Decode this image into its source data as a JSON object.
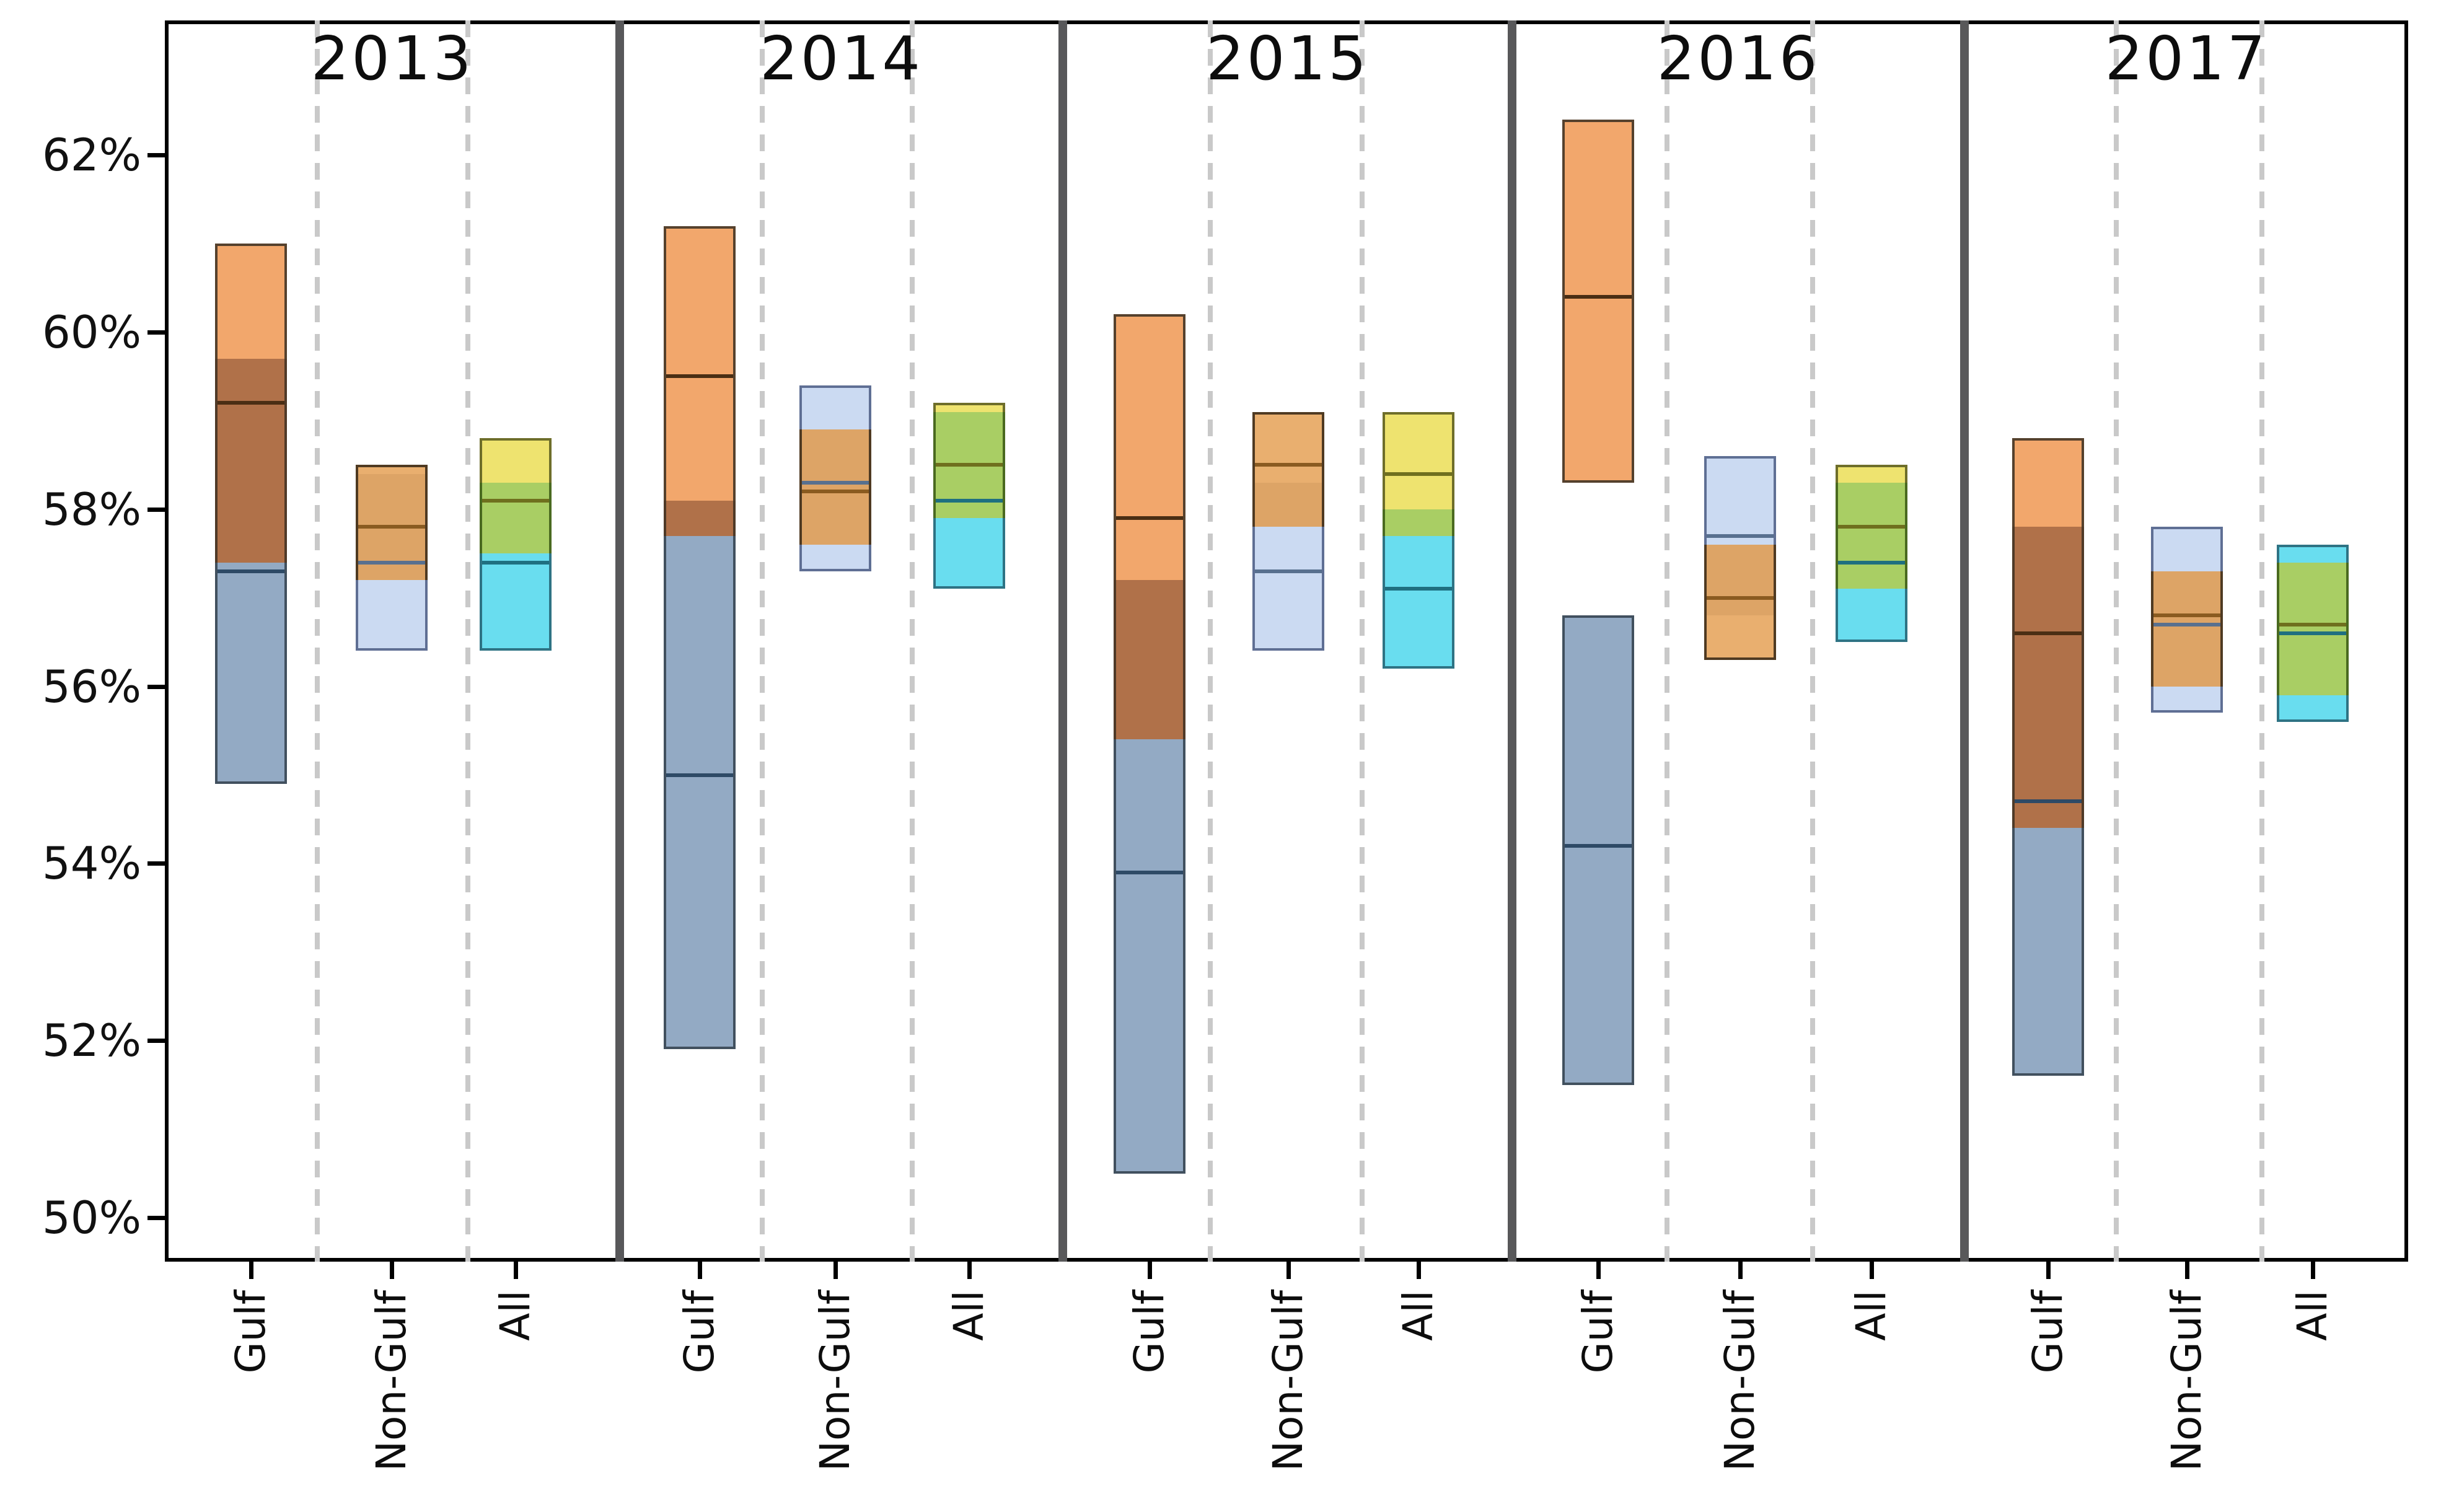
{
  "chart_data": {
    "type": "bar",
    "subtype": "grouped overlapping vertical range boxes (floating bars) with median lines, two semi-transparent boxes per column",
    "title": "",
    "xlabel": "",
    "ylabel": "",
    "ylim": [
      49.5,
      63.5
    ],
    "grid": "vertical dashed category dividers only, no horizontal gridlines",
    "legend": "none",
    "y_tick_labels": [
      "62%",
      "60%",
      "58%",
      "56%",
      "54%",
      "52%",
      "50%"
    ],
    "y_tick_values": [
      62,
      60,
      58,
      56,
      54,
      52,
      50
    ],
    "groups": [
      {
        "year": "2013",
        "columns": [
          {
            "category": "Gulf",
            "box_warm": {
              "lo": 57.4,
              "median": 59.2,
              "hi": 61.0
            },
            "box_cool": {
              "lo": 54.9,
              "median": 57.3,
              "hi": 59.7
            }
          },
          {
            "category": "Non-Gulf",
            "box_warm": {
              "lo": 57.2,
              "median": 57.8,
              "hi": 58.5
            },
            "box_cool": {
              "lo": 56.4,
              "median": 57.4,
              "hi": 58.4
            }
          },
          {
            "category": "All",
            "box_warm": {
              "lo": 57.5,
              "median": 58.1,
              "hi": 58.8
            },
            "box_cool": {
              "lo": 56.4,
              "median": 57.4,
              "hi": 58.3
            }
          }
        ]
      },
      {
        "year": "2014",
        "columns": [
          {
            "category": "Gulf",
            "box_warm": {
              "lo": 57.7,
              "median": 59.5,
              "hi": 61.2
            },
            "box_cool": {
              "lo": 51.9,
              "median": 55.0,
              "hi": 58.1
            }
          },
          {
            "category": "Non-Gulf",
            "box_warm": {
              "lo": 57.6,
              "median": 58.2,
              "hi": 58.9
            },
            "box_cool": {
              "lo": 57.3,
              "median": 58.3,
              "hi": 59.4
            }
          },
          {
            "category": "All",
            "box_warm": {
              "lo": 57.9,
              "median": 58.5,
              "hi": 59.2
            },
            "box_cool": {
              "lo": 57.1,
              "median": 58.1,
              "hi": 59.1
            }
          }
        ]
      },
      {
        "year": "2015",
        "columns": [
          {
            "category": "Gulf",
            "box_warm": {
              "lo": 55.4,
              "median": 57.9,
              "hi": 60.2
            },
            "box_cool": {
              "lo": 50.5,
              "median": 53.9,
              "hi": 57.2
            }
          },
          {
            "category": "Non-Gulf",
            "box_warm": {
              "lo": 57.8,
              "median": 58.5,
              "hi": 59.1
            },
            "box_cool": {
              "lo": 56.4,
              "median": 57.3,
              "hi": 58.3
            }
          },
          {
            "category": "All",
            "box_warm": {
              "lo": 57.7,
              "median": 58.4,
              "hi": 59.1
            },
            "box_cool": {
              "lo": 56.2,
              "median": 57.1,
              "hi": 58.0
            }
          }
        ]
      },
      {
        "year": "2016",
        "columns": [
          {
            "category": "Gulf",
            "box_warm": {
              "lo": 58.3,
              "median": 60.4,
              "hi": 62.4
            },
            "box_cool": {
              "lo": 51.5,
              "median": 54.2,
              "hi": 56.8
            }
          },
          {
            "category": "Non-Gulf",
            "box_warm": {
              "lo": 56.3,
              "median": 57.0,
              "hi": 57.6
            },
            "box_cool": {
              "lo": 56.8,
              "median": 57.7,
              "hi": 58.6
            }
          },
          {
            "category": "All",
            "box_warm": {
              "lo": 57.1,
              "median": 57.8,
              "hi": 58.5
            },
            "box_cool": {
              "lo": 56.5,
              "median": 57.4,
              "hi": 58.3
            }
          }
        ]
      },
      {
        "year": "2017",
        "columns": [
          {
            "category": "Gulf",
            "box_warm": {
              "lo": 54.4,
              "median": 56.6,
              "hi": 58.8
            },
            "box_cool": {
              "lo": 51.6,
              "median": 54.7,
              "hi": 57.8
            }
          },
          {
            "category": "Non-Gulf",
            "box_warm": {
              "lo": 56.0,
              "median": 56.8,
              "hi": 57.3
            },
            "box_cool": {
              "lo": 55.7,
              "median": 56.7,
              "hi": 57.8
            }
          },
          {
            "category": "All",
            "box_warm": {
              "lo": 55.9,
              "median": 56.7,
              "hi": 57.4
            },
            "box_cool": {
              "lo": 55.6,
              "median": 56.6,
              "hi": 57.6
            }
          }
        ]
      }
    ],
    "colors_by_category": {
      "Gulf": {
        "warm_fill": "#F2A76C",
        "warm_edge": "#55412D",
        "warm_median": "#4A2E14",
        "cool_fill": "#93AAC4",
        "cool_edge": "#41505E",
        "cool_median": "#2E4A66",
        "overlap_fill": "#B07149",
        "overlap_edge": "#4F3A28"
      },
      "Non-Gulf": {
        "warm_fill": "#E9AF6F",
        "warm_edge": "#4F3A22",
        "warm_median": "#8A5B20",
        "cool_fill": "#CBDAF2",
        "cool_edge": "#5F6F94",
        "cool_median": "#58708F",
        "overlap_fill": "#DDA466",
        "overlap_edge": "#4F3A22"
      },
      "All": {
        "warm_fill": "#EEE36F",
        "warm_edge": "#6E6E2A",
        "warm_median": "#6F6F1E",
        "cool_fill": "#69DDEF",
        "cool_edge": "#2E7384",
        "cool_median": "#1F6F80",
        "overlap_fill": "#A9CE64",
        "overlap_edge": "#4A6A20"
      }
    },
    "axis_colors": {
      "border": "#000000",
      "group_separator": "#58585a",
      "category_divider_dashed": "#c9c9c9",
      "text": "#111111"
    }
  }
}
